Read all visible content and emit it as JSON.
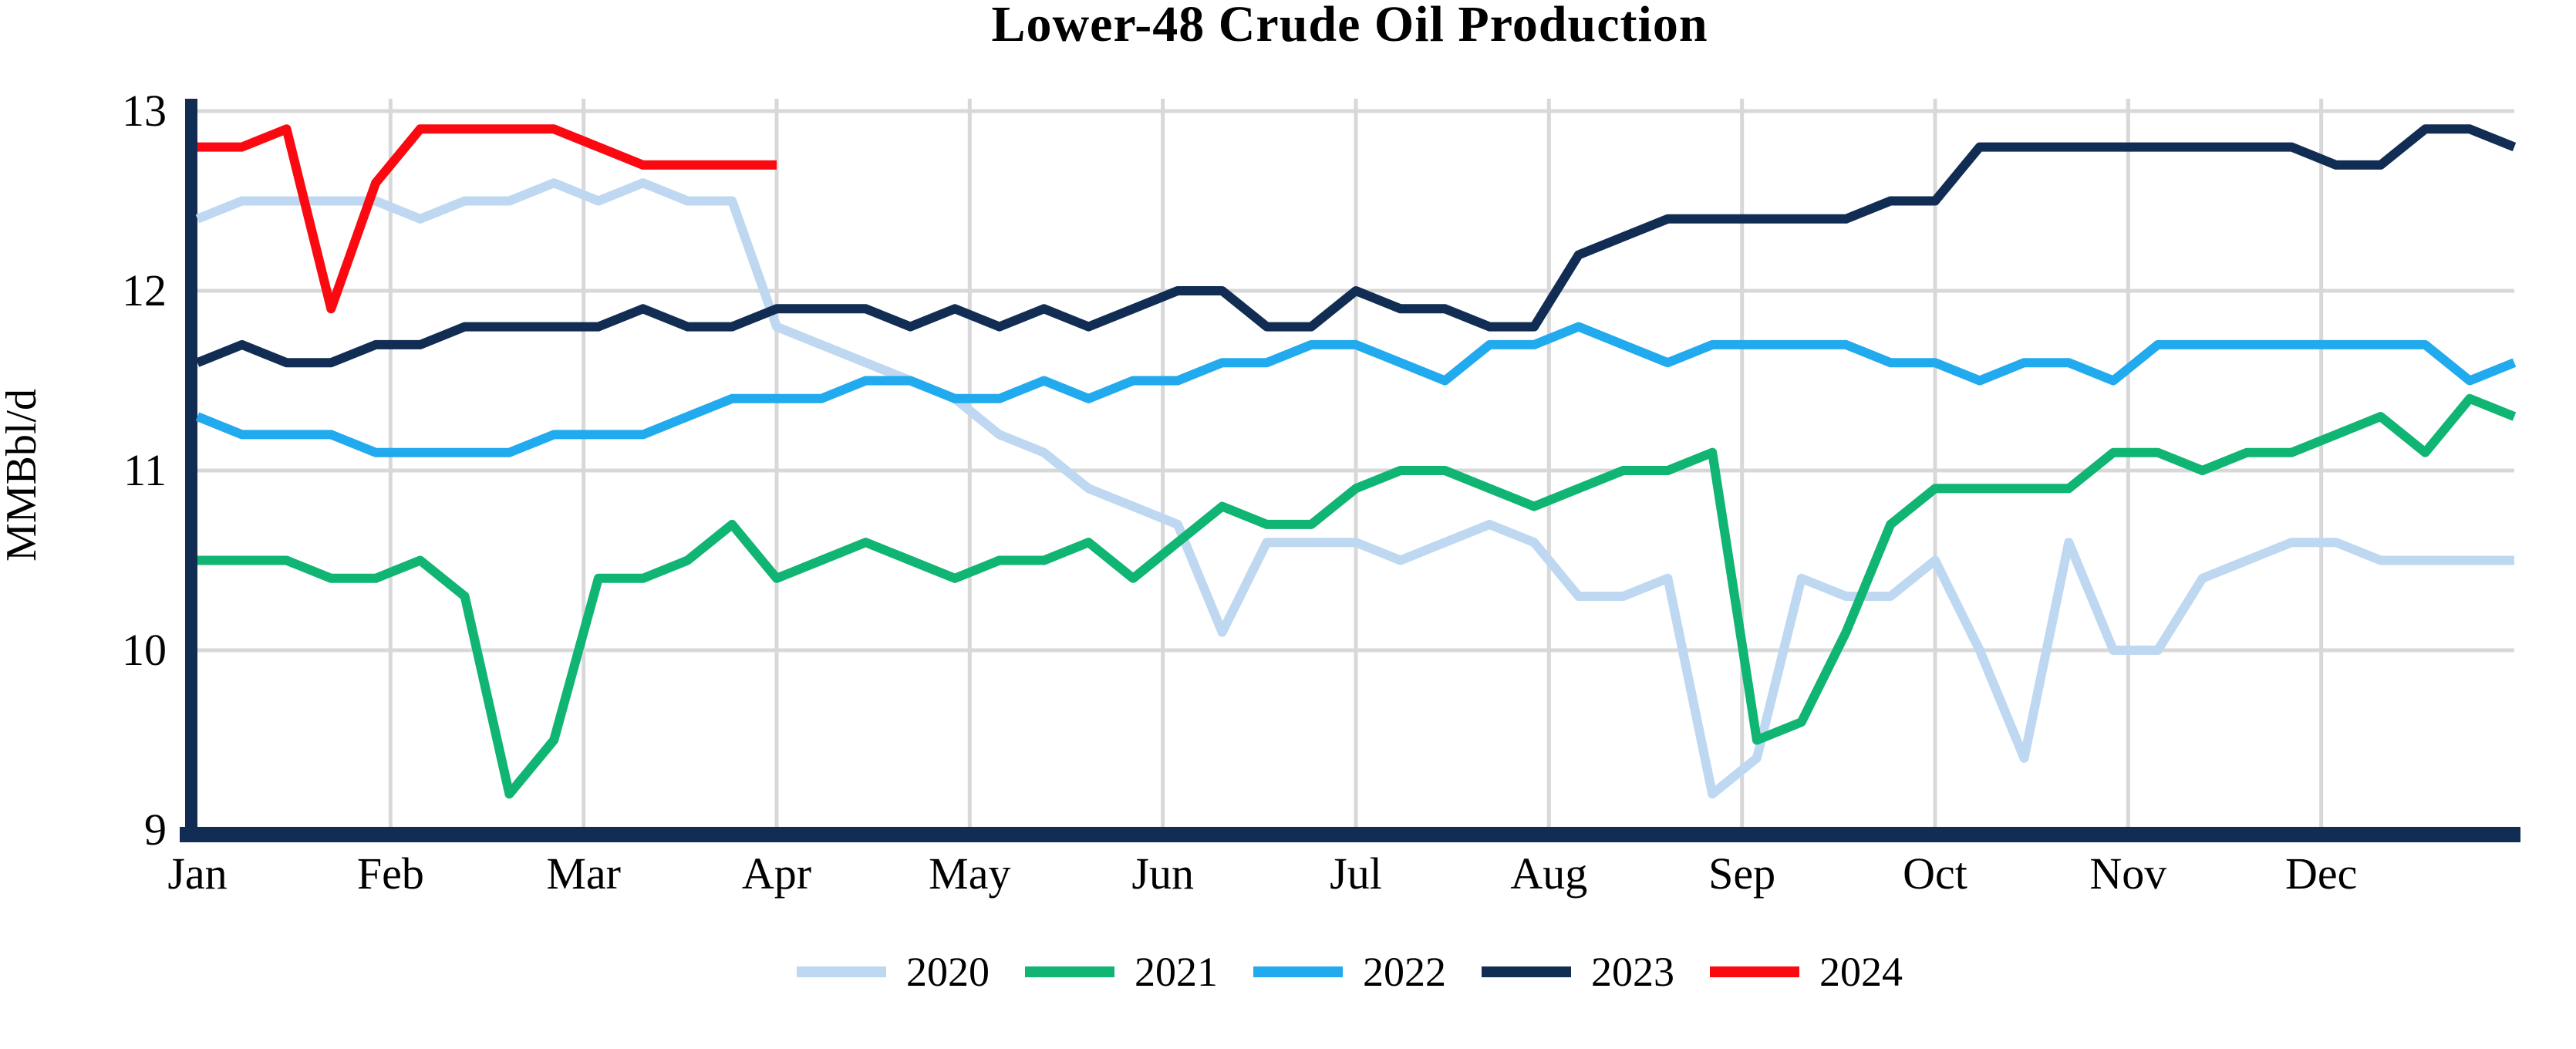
{
  "title": "Lower-48 Crude Oil Production",
  "y_axis": {
    "label": "MMBbl/d",
    "tick_labels": [
      "13",
      "12",
      "11",
      "10",
      "9"
    ],
    "tick_values": [
      13,
      12,
      11,
      10,
      9
    ]
  },
  "x_axis": {
    "month_labels": [
      "Jan",
      "Feb",
      "Mar",
      "Apr",
      "May",
      "Jun",
      "Jul",
      "Aug",
      "Sep",
      "Oct",
      "Nov",
      "Dec"
    ]
  },
  "layout_colors": {
    "background": "#ffffff",
    "gridline": "#d8d8d8",
    "axis_spine": "#112d54",
    "text": "#000000"
  },
  "chart_data": {
    "type": "line",
    "title": "Lower-48 Crude Oil Production",
    "xlabel": "",
    "ylabel": "MMBbl/d",
    "ylim": [
      9,
      13
    ],
    "grid": true,
    "legend_position": "bottom",
    "x_unit": "week of year (52 weeks, Jan-Dec)",
    "x_month_labels": [
      "Jan",
      "Feb",
      "Mar",
      "Apr",
      "May",
      "Jun",
      "Jul",
      "Aug",
      "Sep",
      "Oct",
      "Nov",
      "Dec"
    ],
    "series": [
      {
        "name": "2020",
        "color": "#bfd8f2",
        "values": [
          12.4,
          12.5,
          12.5,
          12.5,
          12.5,
          12.4,
          12.5,
          12.5,
          12.6,
          12.5,
          12.6,
          12.5,
          12.5,
          11.8,
          11.7,
          11.6,
          11.5,
          11.4,
          11.2,
          11.1,
          10.9,
          10.8,
          10.7,
          10.1,
          10.6,
          10.6,
          10.6,
          10.5,
          10.6,
          10.7,
          10.6,
          10.3,
          10.3,
          10.4,
          9.2,
          9.4,
          10.4,
          10.3,
          10.3,
          10.5,
          10.0,
          9.4,
          10.6,
          10.0,
          10.0,
          10.4,
          10.5,
          10.6,
          10.6,
          10.5,
          10.5,
          10.5,
          10.5
        ]
      },
      {
        "name": "2021",
        "color": "#10b574",
        "values": [
          10.5,
          10.5,
          10.5,
          10.4,
          10.4,
          10.5,
          10.3,
          9.2,
          9.5,
          10.4,
          10.4,
          10.5,
          10.7,
          10.4,
          10.5,
          10.6,
          10.5,
          10.4,
          10.5,
          10.5,
          10.6,
          10.4,
          10.6,
          10.8,
          10.7,
          10.7,
          10.9,
          11.0,
          11.0,
          10.9,
          10.8,
          10.9,
          11.0,
          11.0,
          11.1,
          9.5,
          9.6,
          10.1,
          10.7,
          10.9,
          10.9,
          10.9,
          10.9,
          11.1,
          11.1,
          11.0,
          11.1,
          11.1,
          11.2,
          11.3,
          11.1,
          11.4,
          11.3
        ]
      },
      {
        "name": "2022",
        "color": "#22aaee",
        "values": [
          11.3,
          11.2,
          11.2,
          11.2,
          11.1,
          11.1,
          11.1,
          11.1,
          11.2,
          11.2,
          11.2,
          11.3,
          11.4,
          11.4,
          11.4,
          11.5,
          11.5,
          11.4,
          11.4,
          11.5,
          11.4,
          11.5,
          11.5,
          11.6,
          11.6,
          11.7,
          11.7,
          11.6,
          11.5,
          11.7,
          11.7,
          11.8,
          11.7,
          11.6,
          11.7,
          11.7,
          11.7,
          11.7,
          11.6,
          11.6,
          11.5,
          11.6,
          11.6,
          11.5,
          11.7,
          11.7,
          11.7,
          11.7,
          11.7,
          11.7,
          11.7,
          11.5,
          11.6
        ]
      },
      {
        "name": "2023",
        "color": "#112d54",
        "values": [
          11.6,
          11.7,
          11.6,
          11.6,
          11.7,
          11.7,
          11.8,
          11.8,
          11.8,
          11.8,
          11.9,
          11.8,
          11.8,
          11.9,
          11.9,
          11.9,
          11.8,
          11.9,
          11.8,
          11.9,
          11.8,
          11.9,
          12.0,
          12.0,
          11.8,
          11.8,
          12.0,
          11.9,
          11.9,
          11.8,
          11.8,
          12.2,
          12.3,
          12.4,
          12.4,
          12.4,
          12.4,
          12.4,
          12.5,
          12.5,
          12.8,
          12.8,
          12.8,
          12.8,
          12.8,
          12.8,
          12.8,
          12.8,
          12.7,
          12.7,
          12.9,
          12.9,
          12.8
        ]
      },
      {
        "name": "2024",
        "color": "#fa0a10",
        "values": [
          12.8,
          12.8,
          12.9,
          11.9,
          12.6,
          12.9,
          12.9,
          12.9,
          12.9,
          12.8,
          12.7,
          12.7,
          12.7,
          12.7
        ]
      }
    ]
  }
}
